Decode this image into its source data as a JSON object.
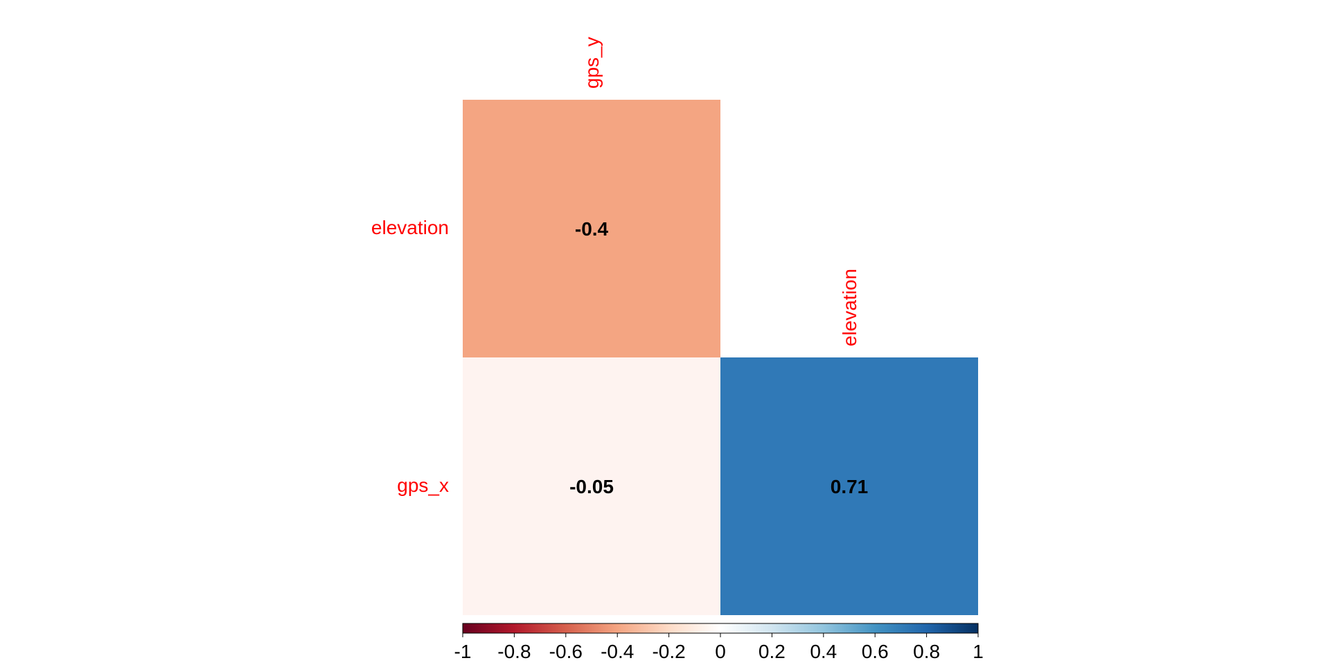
{
  "chart_data": {
    "type": "heatmap",
    "title": "",
    "layout": "lower-triangle",
    "row_labels": [
      "elevation",
      "gps_x"
    ],
    "column_labels": [
      "gps_y",
      "elevation"
    ],
    "cells": [
      {
        "row": "elevation",
        "column": "gps_y",
        "value": -0.4,
        "label": "-0.4"
      },
      {
        "row": "gps_x",
        "column": "gps_y",
        "value": -0.05,
        "label": "-0.05"
      },
      {
        "row": "gps_x",
        "column": "elevation",
        "value": 0.71,
        "label": "0.71"
      }
    ],
    "color_scale": {
      "min": -1,
      "max": 1,
      "low_color": "#67001f",
      "mid_color": "#ffffff",
      "high_color": "#053061",
      "ticks": [
        "-1",
        "-0.8",
        "-0.6",
        "-0.4",
        "-0.2",
        "0",
        "0.2",
        "0.4",
        "0.6",
        "0.8",
        "1"
      ]
    },
    "label_color": "#ff0000",
    "cell_colors": [
      "#f4a582",
      "#fef3f0",
      "#3079b7"
    ]
  }
}
